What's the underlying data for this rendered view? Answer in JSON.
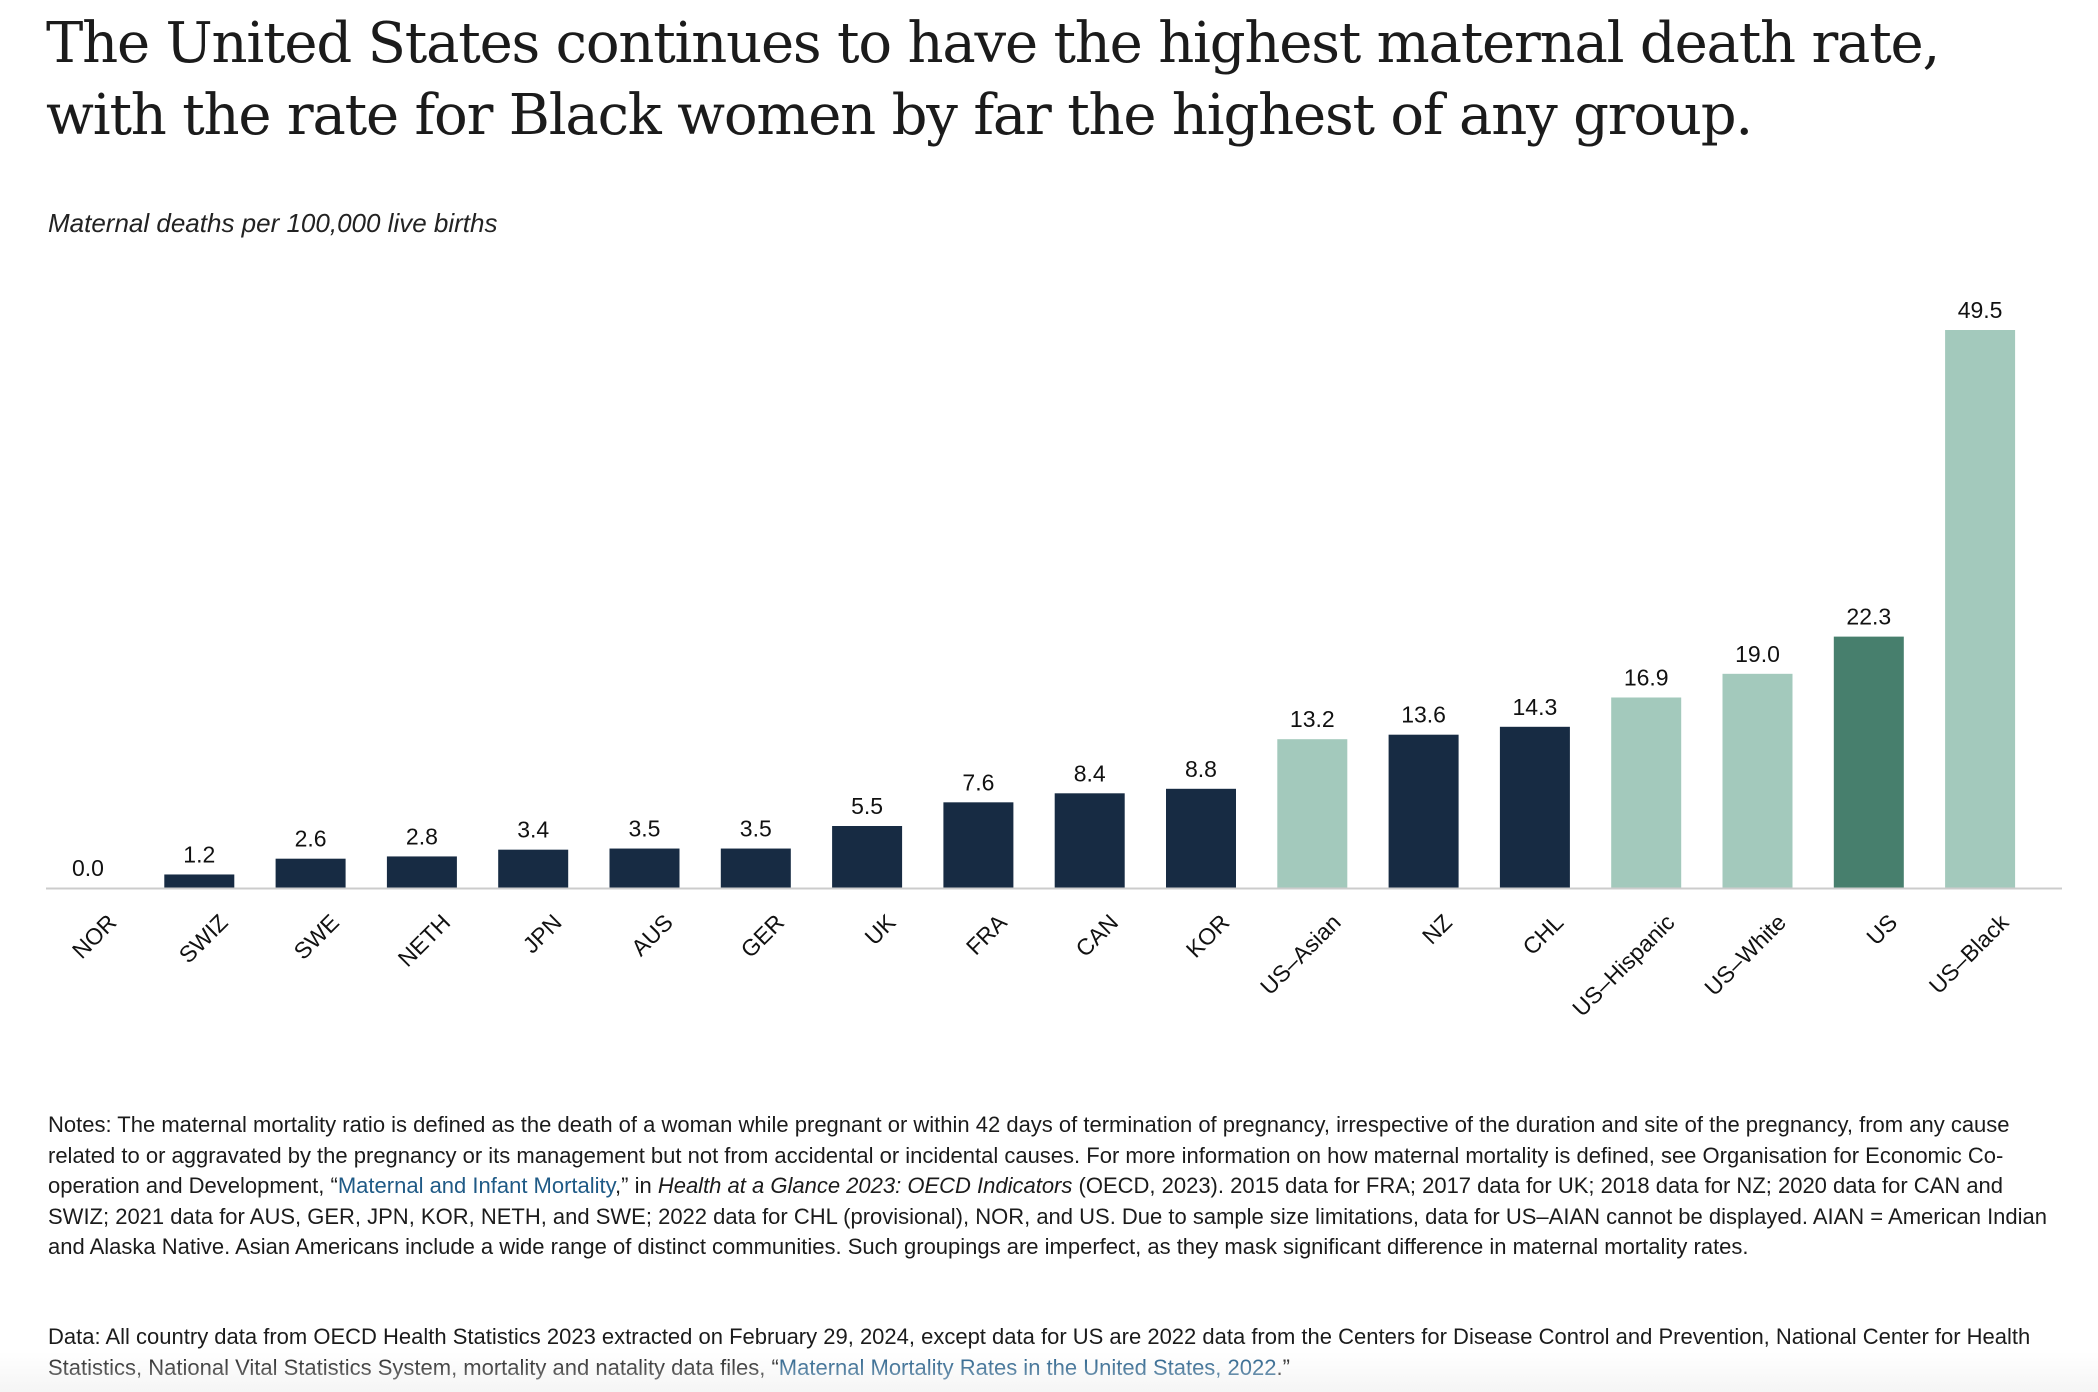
{
  "title": "The United States continues to have the highest maternal death rate, with the rate for Black women by far the highest of any group.",
  "subtitle": "Maternal deaths per 100,000 live births",
  "colors": {
    "country": "#172b43",
    "us_group": "#a3c9bc",
    "us_total": "#477f6d",
    "axis": "#cccccc",
    "link": "#1f5a86"
  },
  "chart_data": {
    "type": "bar",
    "categories": [
      "NOR",
      "SWIZ",
      "SWE",
      "NETH",
      "JPN",
      "AUS",
      "GER",
      "UK",
      "FRA",
      "CAN",
      "KOR",
      "US–Asian",
      "NZ",
      "CHL",
      "US–Hispanic",
      "US–White",
      "US",
      "US–Black"
    ],
    "values": [
      0.0,
      1.2,
      2.6,
      2.8,
      3.4,
      3.5,
      3.5,
      5.5,
      7.6,
      8.4,
      8.8,
      13.2,
      13.6,
      14.3,
      16.9,
      19.0,
      22.3,
      49.5
    ],
    "value_labels": [
      "0.0",
      "1.2",
      "2.6",
      "2.8",
      "3.4",
      "3.5",
      "3.5",
      "5.5",
      "7.6",
      "8.4",
      "8.8",
      "13.2",
      "13.6",
      "14.3",
      "16.9",
      "19.0",
      "22.3",
      "49.5"
    ],
    "groups": [
      "country",
      "country",
      "country",
      "country",
      "country",
      "country",
      "country",
      "country",
      "country",
      "country",
      "country",
      "us_group",
      "country",
      "country",
      "us_group",
      "us_group",
      "us_total",
      "us_group"
    ],
    "ylabel": "Maternal deaths per 100,000 live births",
    "ylim": [
      0,
      49.5
    ],
    "grid": false,
    "legend": "none"
  },
  "notes": {
    "part1": "Notes: The maternal mortality ratio is defined as the death of a woman while pregnant or within 42 days of termination of pregnancy, irrespective of the duration and site of the pregnancy, from any cause related to or aggravated by the pregnancy or its management but not from accidental or incidental causes. For more information on how maternal mortality is defined, see Organisation for Economic Co-operation and Development, “",
    "link": "Maternal and Infant Mortality",
    "part2": ",” in ",
    "italic": "Health at a Glance 2023: OECD Indicators",
    "part3": " (OECD, 2023). 2015 data for FRA; 2017 data for UK; 2018 data for NZ; 2020 data for CAN and SWIZ; 2021 data for AUS, GER, JPN, KOR, NETH, and SWE; 2022 data for CHL (provisional), NOR, and US. Due to sample size limitations, data for US–AIAN cannot be displayed. AIAN = American Indian and Alaska Native. Asian Americans include a wide range of distinct communities. Such groupings are imperfect, as they mask significant difference in maternal mortality rates."
  },
  "source": {
    "part1": "Data: All country data from OECD Health Statistics 2023 extracted on February 29, 2024, except data for US are 2022 data from the Centers for Disease Control and Prevention, National Center for Health Statistics, National Vital Statistics System, mortality and natality data files, “",
    "link": "Maternal Mortality Rates in the United States, 2022",
    "part2": ".”"
  }
}
